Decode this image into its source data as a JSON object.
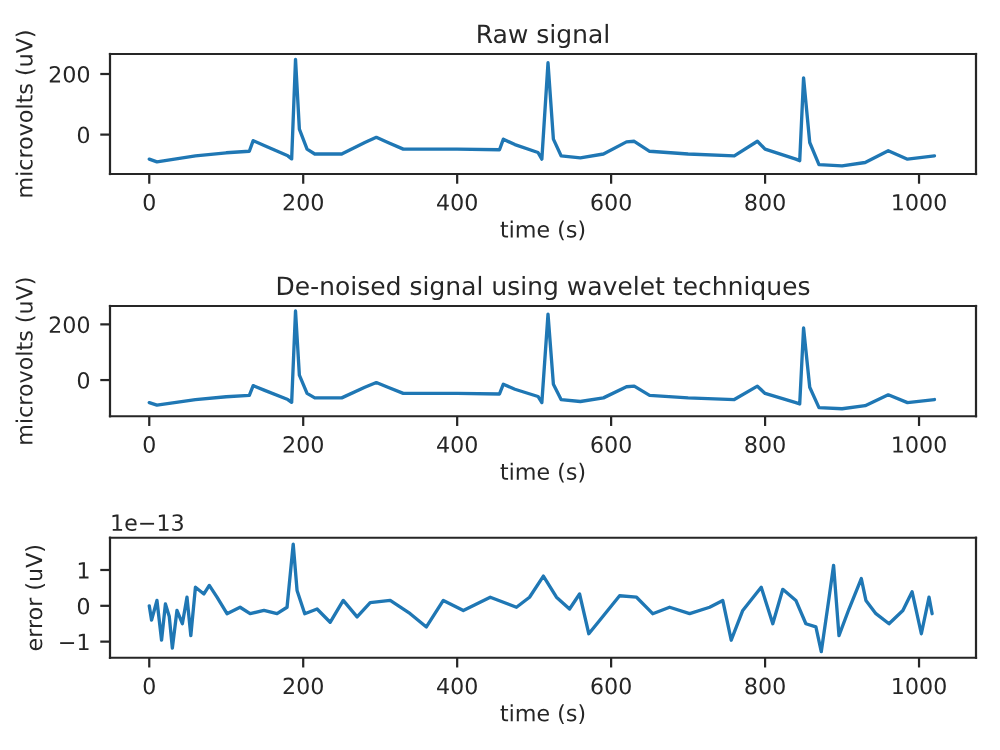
{
  "chart_data": [
    {
      "type": "line",
      "title": "Raw signal",
      "xlabel": "time (s)",
      "ylabel": "microvolts (uV)",
      "xlim": [
        -51,
        1074
      ],
      "xticks": [
        0,
        200,
        400,
        600,
        800,
        1000
      ],
      "ylim": [
        -130,
        266
      ],
      "yticks": [
        0,
        200
      ],
      "grid": false,
      "series": [
        {
          "color": "#1f77b4",
          "x": [
            0,
            10,
            60,
            100,
            130,
            135,
            150,
            180,
            185,
            190,
            195,
            205,
            215,
            250,
            280,
            295,
            310,
            330,
            400,
            455,
            460,
            475,
            505,
            510,
            518,
            525,
            535,
            560,
            590,
            620,
            630,
            650,
            700,
            760,
            790,
            800,
            840,
            845,
            850,
            858,
            870,
            900,
            930,
            960,
            985,
            1020
          ],
          "values": [
            -81,
            -90,
            -70,
            -60,
            -55,
            -20,
            -37,
            -70,
            -80,
            248,
            18,
            -48,
            -64,
            -64,
            -26,
            -9,
            -26,
            -48,
            -48,
            -50,
            -15,
            -33,
            -59,
            -81,
            237,
            -15,
            -70,
            -77,
            -64,
            -24,
            -22,
            -55,
            -64,
            -70,
            -22,
            -48,
            -81,
            -86,
            187,
            -26,
            -99,
            -103,
            -92,
            -53,
            -81,
            -70
          ]
        }
      ]
    },
    {
      "type": "line",
      "title": "De-noised signal using wavelet techniques",
      "xlabel": "time (s)",
      "ylabel": "microvolts (uV)",
      "xlim": [
        -51,
        1074
      ],
      "xticks": [
        0,
        200,
        400,
        600,
        800,
        1000
      ],
      "ylim": [
        -130,
        266
      ],
      "yticks": [
        0,
        200
      ],
      "grid": false,
      "series": [
        {
          "color": "#1f77b4",
          "x": [
            0,
            10,
            60,
            100,
            130,
            135,
            150,
            180,
            185,
            190,
            195,
            205,
            215,
            250,
            280,
            295,
            310,
            330,
            400,
            455,
            460,
            475,
            505,
            510,
            518,
            525,
            535,
            560,
            590,
            620,
            630,
            650,
            700,
            760,
            790,
            800,
            840,
            845,
            850,
            858,
            870,
            900,
            930,
            960,
            985,
            1020
          ],
          "values": [
            -81,
            -90,
            -70,
            -60,
            -55,
            -20,
            -37,
            -70,
            -80,
            248,
            18,
            -48,
            -64,
            -64,
            -26,
            -9,
            -26,
            -48,
            -48,
            -50,
            -15,
            -33,
            -59,
            -81,
            237,
            -15,
            -70,
            -77,
            -64,
            -24,
            -22,
            -55,
            -64,
            -70,
            -22,
            -48,
            -81,
            -86,
            187,
            -26,
            -99,
            -103,
            -92,
            -53,
            -81,
            -70
          ]
        }
      ]
    },
    {
      "type": "line",
      "xlabel": "time (s)",
      "ylabel": "error (uV)",
      "annotations": [
        "1e−13"
      ],
      "xlim": [
        -51,
        1074
      ],
      "xticks": [
        0,
        200,
        400,
        600,
        800,
        1000
      ],
      "ylim": [
        -1.45,
        1.9
      ],
      "yticks": [
        {
          "value": -1,
          "label": "−1"
        },
        0,
        1
      ],
      "grid": false,
      "series": [
        {
          "color": "#1f77b4",
          "x": [
            0,
            3,
            10,
            16,
            21,
            26,
            30,
            36,
            43,
            49,
            54,
            60,
            71,
            78,
            88,
            101,
            118,
            131,
            149,
            166,
            179,
            187,
            192,
            202,
            218,
            235,
            252,
            270,
            287,
            313,
            339,
            360,
            382,
            408,
            443,
            477,
            494,
            512,
            529,
            546,
            559,
            571,
            585,
            611,
            633,
            654,
            676,
            702,
            728,
            745,
            756,
            771,
            788,
            795,
            810,
            823,
            840,
            853,
            866,
            873,
            882,
            889,
            896,
            909,
            925,
            931,
            944,
            961,
            979,
            991,
            1003,
            1013,
            1017
          ],
          "values": [
            0,
            -0.4,
            0.15,
            -0.96,
            0.05,
            -0.3,
            -1.18,
            -0.13,
            -0.5,
            0.24,
            -0.83,
            0.52,
            0.33,
            0.57,
            0.24,
            -0.22,
            -0.04,
            -0.22,
            -0.13,
            -0.22,
            -0.04,
            1.72,
            0.43,
            -0.22,
            -0.09,
            -0.46,
            0.15,
            -0.31,
            0.09,
            0.15,
            -0.22,
            -0.59,
            0.15,
            -0.13,
            0.24,
            -0.04,
            0.24,
            0.83,
            0.24,
            -0.09,
            0.33,
            -0.78,
            -0.41,
            0.28,
            0.24,
            -0.22,
            -0.04,
            -0.22,
            -0.04,
            0.15,
            -0.96,
            -0.13,
            0.33,
            0.52,
            -0.5,
            0.46,
            0.15,
            -0.5,
            -0.59,
            -1.28,
            0.06,
            1.13,
            -0.83,
            -0.09,
            0.76,
            0.15,
            -0.22,
            -0.5,
            -0.13,
            0.39,
            -0.78,
            0.24,
            -0.22
          ]
        }
      ]
    }
  ]
}
